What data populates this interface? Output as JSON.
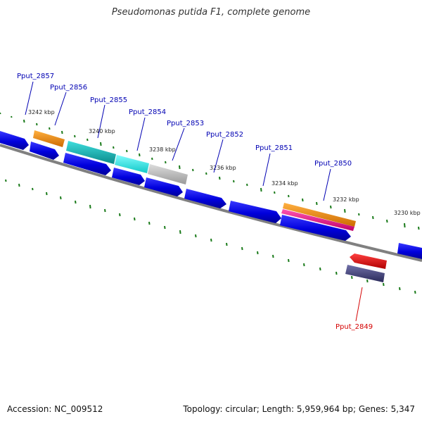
{
  "title": "Pseudomonas putida F1, complete genome",
  "footer": {
    "accession": "Accession: NC_009512",
    "summary": "Topology: circular; Length: 5,959,964 bp; Genes: 5,347"
  },
  "ticks": [
    "3242 kbp",
    "3240 kbp",
    "3238 kbp",
    "3236 kbp",
    "3234 kbp",
    "3232 kbp",
    "3230 kbp"
  ],
  "gene_labels": [
    "Pput_2857",
    "Pput_2856",
    "Pput_2855",
    "Pput_2854",
    "Pput_2853",
    "Pput_2852",
    "Pput_2851",
    "Pput_2850",
    "Pput_2849"
  ],
  "colors": {
    "backbone": "#777777",
    "cds": "#0000ee",
    "dots": "#1a7a1a",
    "label": "#0000b3",
    "label_highlight": "#d40000",
    "orange": "#ff8c00",
    "teal": "#11bbbb",
    "cyan": "#22eeee",
    "grey": "#bbbbbb",
    "pink": "#ee1188",
    "red": "#ee0000",
    "slate": "#44447a"
  }
}
